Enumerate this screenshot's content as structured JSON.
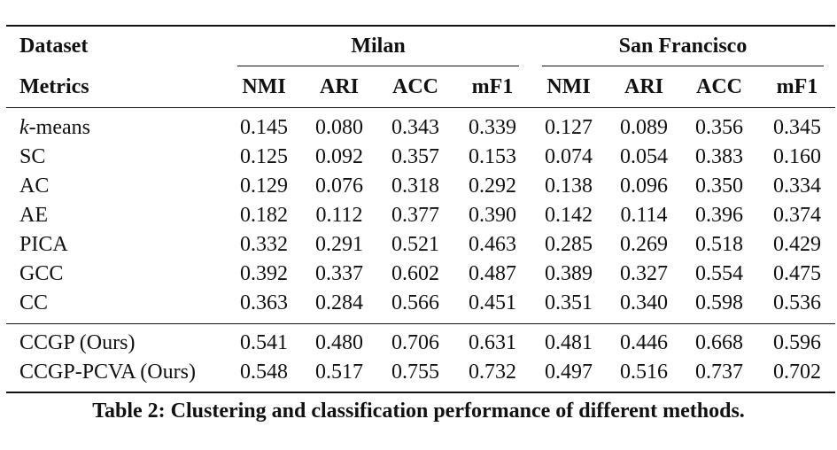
{
  "table": {
    "dataset_label": "Dataset",
    "metrics_label": "Metrics",
    "groups": [
      "Milan",
      "San Francisco"
    ],
    "metrics": [
      "NMI",
      "ARI",
      "ACC",
      "mF1",
      "NMI",
      "ARI",
      "ACC",
      "mF1"
    ],
    "rows": [
      {
        "method": "-means",
        "method_prefix": "k",
        "values": [
          "0.145",
          "0.080",
          "0.343",
          "0.339",
          "0.127",
          "0.089",
          "0.356",
          "0.345"
        ]
      },
      {
        "method": "SC",
        "values": [
          "0.125",
          "0.092",
          "0.357",
          "0.153",
          "0.074",
          "0.054",
          "0.383",
          "0.160"
        ]
      },
      {
        "method": "AC",
        "values": [
          "0.129",
          "0.076",
          "0.318",
          "0.292",
          "0.138",
          "0.096",
          "0.350",
          "0.334"
        ]
      },
      {
        "method": "AE",
        "values": [
          "0.182",
          "0.112",
          "0.377",
          "0.390",
          "0.142",
          "0.114",
          "0.396",
          "0.374"
        ]
      },
      {
        "method": "PICA",
        "values": [
          "0.332",
          "0.291",
          "0.521",
          "0.463",
          "0.285",
          "0.269",
          "0.518",
          "0.429"
        ]
      },
      {
        "method": "GCC",
        "values": [
          "0.392",
          "0.337",
          "0.602",
          "0.487",
          "0.389",
          "0.327",
          "0.554",
          "0.475"
        ]
      },
      {
        "method": "CC",
        "values": [
          "0.363",
          "0.284",
          "0.566",
          "0.451",
          "0.351",
          "0.340",
          "0.598",
          "0.536"
        ]
      },
      {
        "method": "CCGP (Ours)",
        "values": [
          "0.541",
          "0.480",
          "0.706",
          "0.631",
          "0.481",
          "0.446",
          "0.668",
          "0.596"
        ]
      },
      {
        "method": "CCGP-PCVA (Ours)",
        "values": [
          "0.548",
          "0.517",
          "0.755",
          "0.732",
          "0.497",
          "0.516",
          "0.737",
          "0.702"
        ]
      }
    ]
  },
  "caption": "Table 2: Clustering and classification performance of different methods."
}
